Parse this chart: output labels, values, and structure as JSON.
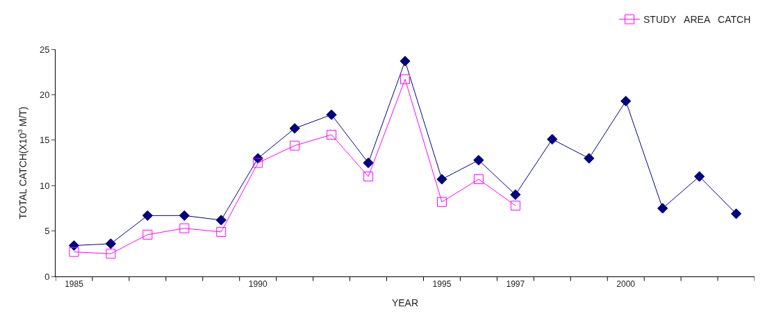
{
  "chart_data": {
    "type": "line",
    "xlabel": "YEAR",
    "ylabel": "TOTAL CATCH(X10$^{3}$ M/T)",
    "categories": [
      "1985",
      null,
      null,
      null,
      null,
      "1990",
      null,
      null,
      null,
      null,
      "1995",
      null,
      "1997",
      null,
      null,
      "2000",
      null,
      null,
      null
    ],
    "series": [
      {
        "color": "#000080",
        "marker": "diamond",
        "values": [
          3.4,
          3.6,
          6.7,
          6.7,
          6.2,
          13.0,
          16.3,
          17.8,
          12.5,
          23.7,
          10.7,
          12.8,
          9.0,
          15.1,
          13.0,
          19.3,
          7.5,
          11.0,
          6.9
        ]
      },
      {
        "name": "STUDY   AREA   CATCH",
        "color": "#ff00ff",
        "marker": "square",
        "values": [
          2.7,
          2.5,
          4.6,
          5.3,
          4.9,
          12.5,
          14.4,
          15.6,
          11.0,
          21.7,
          8.2,
          10.7,
          7.8,
          null,
          null,
          null,
          null,
          null,
          null
        ]
      }
    ],
    "ylim": [
      0,
      25
    ],
    "yticks": [
      0,
      5,
      10,
      15,
      20,
      25
    ],
    "legend": "top right",
    "line_style": "solid"
  }
}
